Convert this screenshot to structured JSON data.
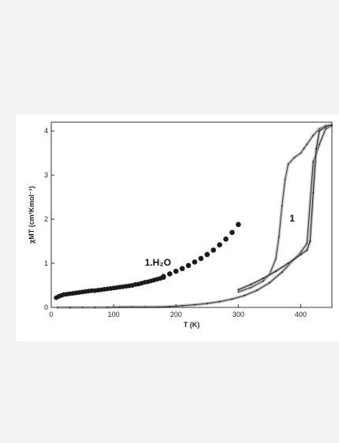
{
  "chart_data": {
    "type": "scatter",
    "title": "",
    "xlabel": "T (K)",
    "ylabel": "χMT (cm³Kmol⁻¹)",
    "xlim": [
      0,
      450
    ],
    "ylim": [
      0,
      4.2
    ],
    "x_ticks": [
      0,
      100,
      200,
      300,
      400
    ],
    "y_ticks": [
      0,
      1,
      2,
      3,
      4
    ],
    "grid": false,
    "legend": "none",
    "annotations": [
      {
        "text": "1.H₂O",
        "x": 150,
        "y": 0.95
      },
      {
        "text": "1",
        "x": 382,
        "y": 1.95
      }
    ],
    "series": [
      {
        "id": "hydrate-large",
        "color": "#1a1a1a",
        "x": [
          180,
          190,
          200,
          210,
          220,
          230,
          240,
          250,
          260,
          270,
          280,
          290,
          300
        ],
        "y": [
          0.7,
          0.76,
          0.82,
          0.88,
          0.95,
          1.03,
          1.11,
          1.2,
          1.3,
          1.42,
          1.55,
          1.7,
          1.88
        ]
      },
      {
        "id": "hydrate-dense",
        "color": "#1a1a1a",
        "x": [
          8,
          12,
          16,
          20,
          25,
          30,
          35,
          40,
          45,
          50,
          55,
          60,
          65,
          70,
          75,
          80,
          85,
          90,
          95,
          100,
          105,
          110,
          115,
          120,
          125,
          130,
          135,
          140,
          145,
          150,
          155,
          160,
          165,
          170,
          175,
          180
        ],
        "y": [
          0.22,
          0.25,
          0.27,
          0.29,
          0.3,
          0.31,
          0.32,
          0.33,
          0.34,
          0.35,
          0.36,
          0.37,
          0.38,
          0.38,
          0.39,
          0.4,
          0.41,
          0.42,
          0.43,
          0.44,
          0.45,
          0.46,
          0.47,
          0.48,
          0.49,
          0.5,
          0.52,
          0.53,
          0.55,
          0.57,
          0.58,
          0.6,
          0.62,
          0.64,
          0.66,
          0.68
        ]
      },
      {
        "id": "compound-1-low",
        "color": "#333333",
        "x": [
          10,
          30,
          50,
          70,
          90,
          110,
          130,
          150,
          170,
          190,
          210,
          230,
          250,
          270,
          290,
          310,
          330,
          350,
          370,
          390,
          400,
          410,
          420,
          430,
          440,
          450
        ],
        "y": [
          0.0,
          0.0,
          0.0,
          0.0,
          0.0,
          0.01,
          0.01,
          0.01,
          0.01,
          0.02,
          0.04,
          0.06,
          0.09,
          0.13,
          0.19,
          0.27,
          0.39,
          0.56,
          0.8,
          1.1,
          1.25,
          1.45,
          3.3,
          3.7,
          4.05,
          4.12
        ]
      },
      {
        "id": "compound-1-cooling",
        "color": "#444444",
        "x": [
          300,
          320,
          340,
          350,
          360,
          365,
          370,
          375,
          380,
          390,
          400,
          405,
          410,
          420,
          430,
          440,
          450
        ],
        "y": [
          0.35,
          0.45,
          0.6,
          0.75,
          1.1,
          1.6,
          2.3,
          2.9,
          3.25,
          3.4,
          3.5,
          3.6,
          3.7,
          3.9,
          4.05,
          4.12,
          4.14
        ]
      },
      {
        "id": "compound-1-upper",
        "color": "#222222",
        "x": [
          300,
          320,
          340,
          360,
          380,
          400,
          410,
          415,
          420,
          425,
          430,
          440,
          450
        ],
        "y": [
          0.4,
          0.52,
          0.66,
          0.82,
          1.0,
          1.2,
          1.3,
          1.5,
          2.6,
          3.6,
          4.0,
          4.1,
          4.13
        ]
      }
    ]
  }
}
